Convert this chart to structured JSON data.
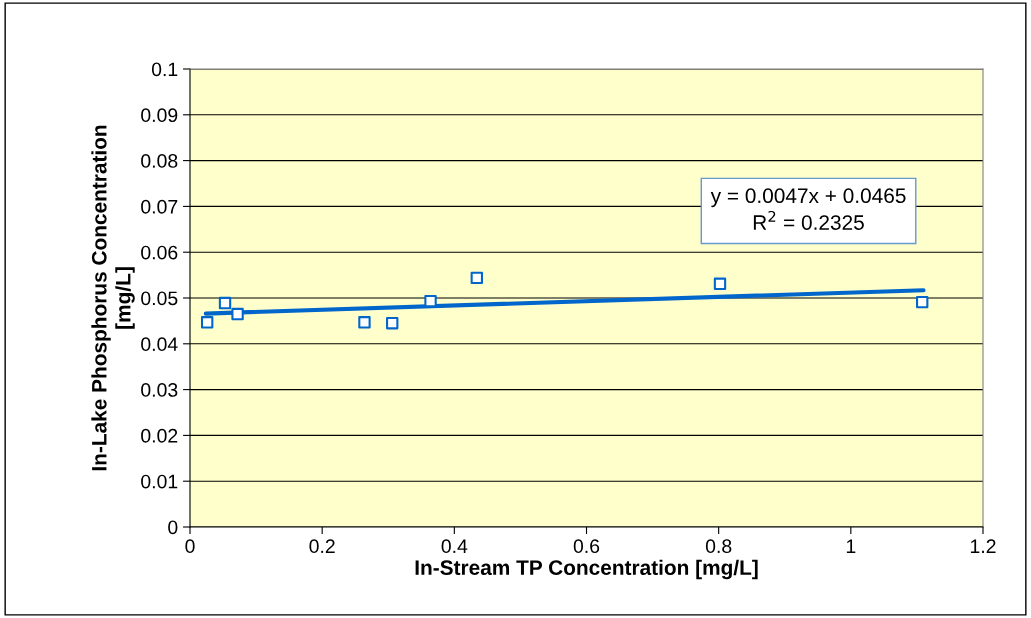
{
  "chart_data": {
    "type": "scatter",
    "xlabel": "In-Stream TP Concentration [mg/L]",
    "ylabel": "In-Lake Phosphorus Concentration\n[mg/L]",
    "xlim": [
      0,
      1.2
    ],
    "xticks": [
      0,
      0.2,
      0.4,
      0.6,
      0.8,
      1,
      1.2
    ],
    "ylim": [
      0,
      0.1
    ],
    "yticks": [
      0,
      0.01,
      0.02,
      0.03,
      0.04,
      0.05,
      0.06,
      0.07,
      0.08,
      0.09,
      0.1
    ],
    "grid": "y",
    "legend": false,
    "series": [
      {
        "marker": "square",
        "color": "#0066cc",
        "x": [
          0.026,
          0.053,
          0.072,
          0.264,
          0.306,
          0.364,
          0.434,
          0.802,
          1.108
        ],
        "values": [
          0.0447,
          0.0489,
          0.0465,
          0.0447,
          0.0445,
          0.0493,
          0.0544,
          0.0531,
          0.0491
        ]
      },
      {
        "type": "line",
        "marker": "none",
        "color": "#0066cc",
        "x": [
          0.024,
          1.11
        ],
        "values": [
          0.0466,
          0.0517
        ]
      }
    ],
    "annotations": [
      "y = 0.0047x + 0.0465\nR$^{2}$ = 0.2325"
    ]
  }
}
